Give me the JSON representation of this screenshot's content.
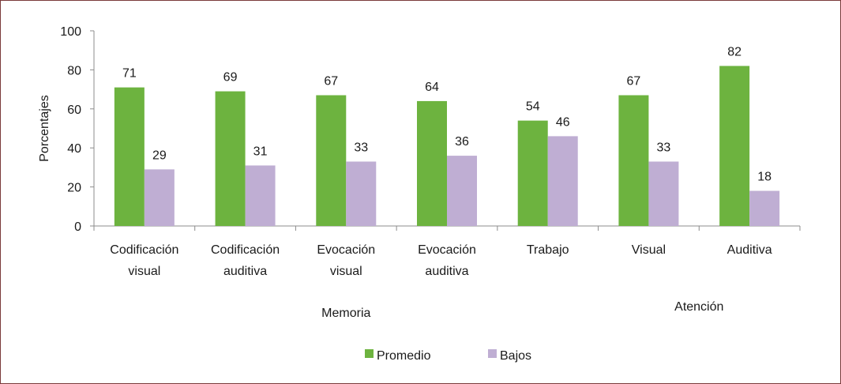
{
  "chart_data": {
    "type": "bar",
    "title": "",
    "ylabel": "Porcentajes",
    "ylim": [
      0,
      100
    ],
    "yticks": [
      0,
      20,
      40,
      60,
      80,
      100
    ],
    "categories": [
      [
        "Codificación",
        "visual"
      ],
      [
        "Codificación",
        "auditiva"
      ],
      [
        "Evocación",
        "visual"
      ],
      [
        "Evocación",
        "auditiva"
      ],
      [
        "Trabajo"
      ],
      [
        "Visual"
      ],
      [
        "Auditiva"
      ]
    ],
    "groups": [
      {
        "label": "Memoria",
        "span": [
          0,
          4
        ]
      },
      {
        "label": "Atención",
        "span": [
          5,
          6
        ]
      }
    ],
    "series": [
      {
        "name": "Promedio",
        "color": "#6db33f",
        "values": [
          71,
          69,
          67,
          64,
          54,
          67,
          82
        ]
      },
      {
        "name": "Bajos",
        "color": "#bfaed3",
        "values": [
          29,
          31,
          33,
          36,
          46,
          33,
          18
        ]
      }
    ],
    "legend_position": "bottom",
    "grid": false
  }
}
